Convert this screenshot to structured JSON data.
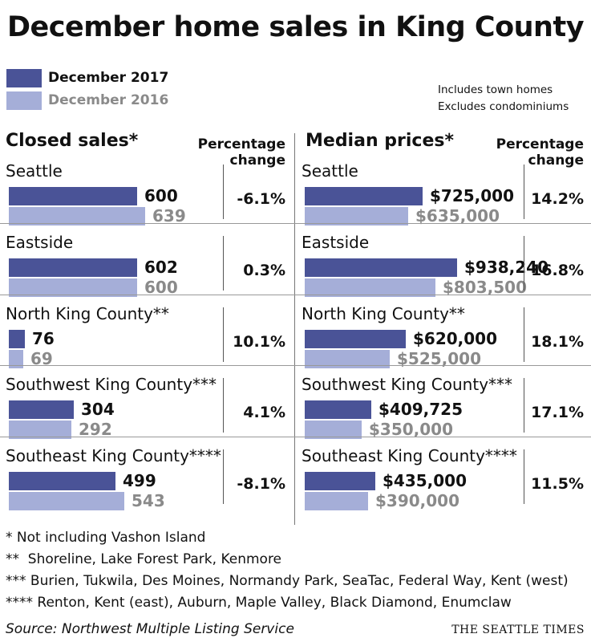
{
  "title": "December home sales in King County",
  "legend": [
    {
      "label": "December 2017",
      "color": "#4a5397",
      "text_color": "#111111"
    },
    {
      "label": "December 2016",
      "color": "#a5aed8",
      "text_color": "#8a8a8a"
    }
  ],
  "notes": [
    "Includes town homes",
    "Excludes condominiums"
  ],
  "closed_sales": {
    "title": "Closed sales*",
    "pct_header": [
      "Percentage",
      "change"
    ]
  },
  "median_prices": {
    "title": "Median prices*",
    "pct_header": [
      "Percentage",
      "change"
    ]
  },
  "chart_data": [
    {
      "type": "bar",
      "title": "Closed sales*",
      "categories": [
        "Seattle",
        "Eastside",
        "North King County**",
        "Southwest King County***",
        "Southeast King County****"
      ],
      "series": [
        {
          "name": "December 2017",
          "values": [
            600,
            602,
            76,
            304,
            499
          ],
          "labels": [
            "600",
            "602",
            "76",
            "304",
            "499"
          ]
        },
        {
          "name": "December 2016",
          "values": [
            639,
            600,
            69,
            292,
            543
          ],
          "labels": [
            "639",
            "600",
            "69",
            "292",
            "543"
          ]
        }
      ],
      "pct_change": [
        "-6.1%",
        "0.3%",
        "10.1%",
        "4.1%",
        "-8.1%"
      ]
    },
    {
      "type": "bar",
      "title": "Median prices*",
      "categories": [
        "Seattle",
        "Eastside",
        "North King County**",
        "Southwest King County***",
        "Southeast King County****"
      ],
      "series": [
        {
          "name": "December 2017",
          "values": [
            725000,
            938240,
            620000,
            409725,
            435000
          ],
          "labels": [
            "$725,000",
            "$938,240",
            "$620,000",
            "$409,725",
            "$435,000"
          ]
        },
        {
          "name": "December 2016",
          "values": [
            635000,
            803500,
            525000,
            350000,
            390000
          ],
          "labels": [
            "$635,000",
            "$803,500",
            "$525,000",
            "$350,000",
            "$390,000"
          ]
        }
      ],
      "pct_change": [
        "14.2%",
        "16.8%",
        "18.1%",
        "17.1%",
        "11.5%"
      ]
    }
  ],
  "footnotes": [
    "* Not including Vashon Island",
    "**  Shoreline, Lake Forest Park, Kenmore",
    "*** Burien, Tukwila, Des Moines, Normandy Park, SeaTac, Federal Way, Kent (west)",
    "**** Renton, Kent (east), Auburn, Maple Valley, Black Diamond, Enumclaw"
  ],
  "source": "Source: Northwest Multiple Listing Service",
  "brand": "THE SEATTLE TIMES"
}
